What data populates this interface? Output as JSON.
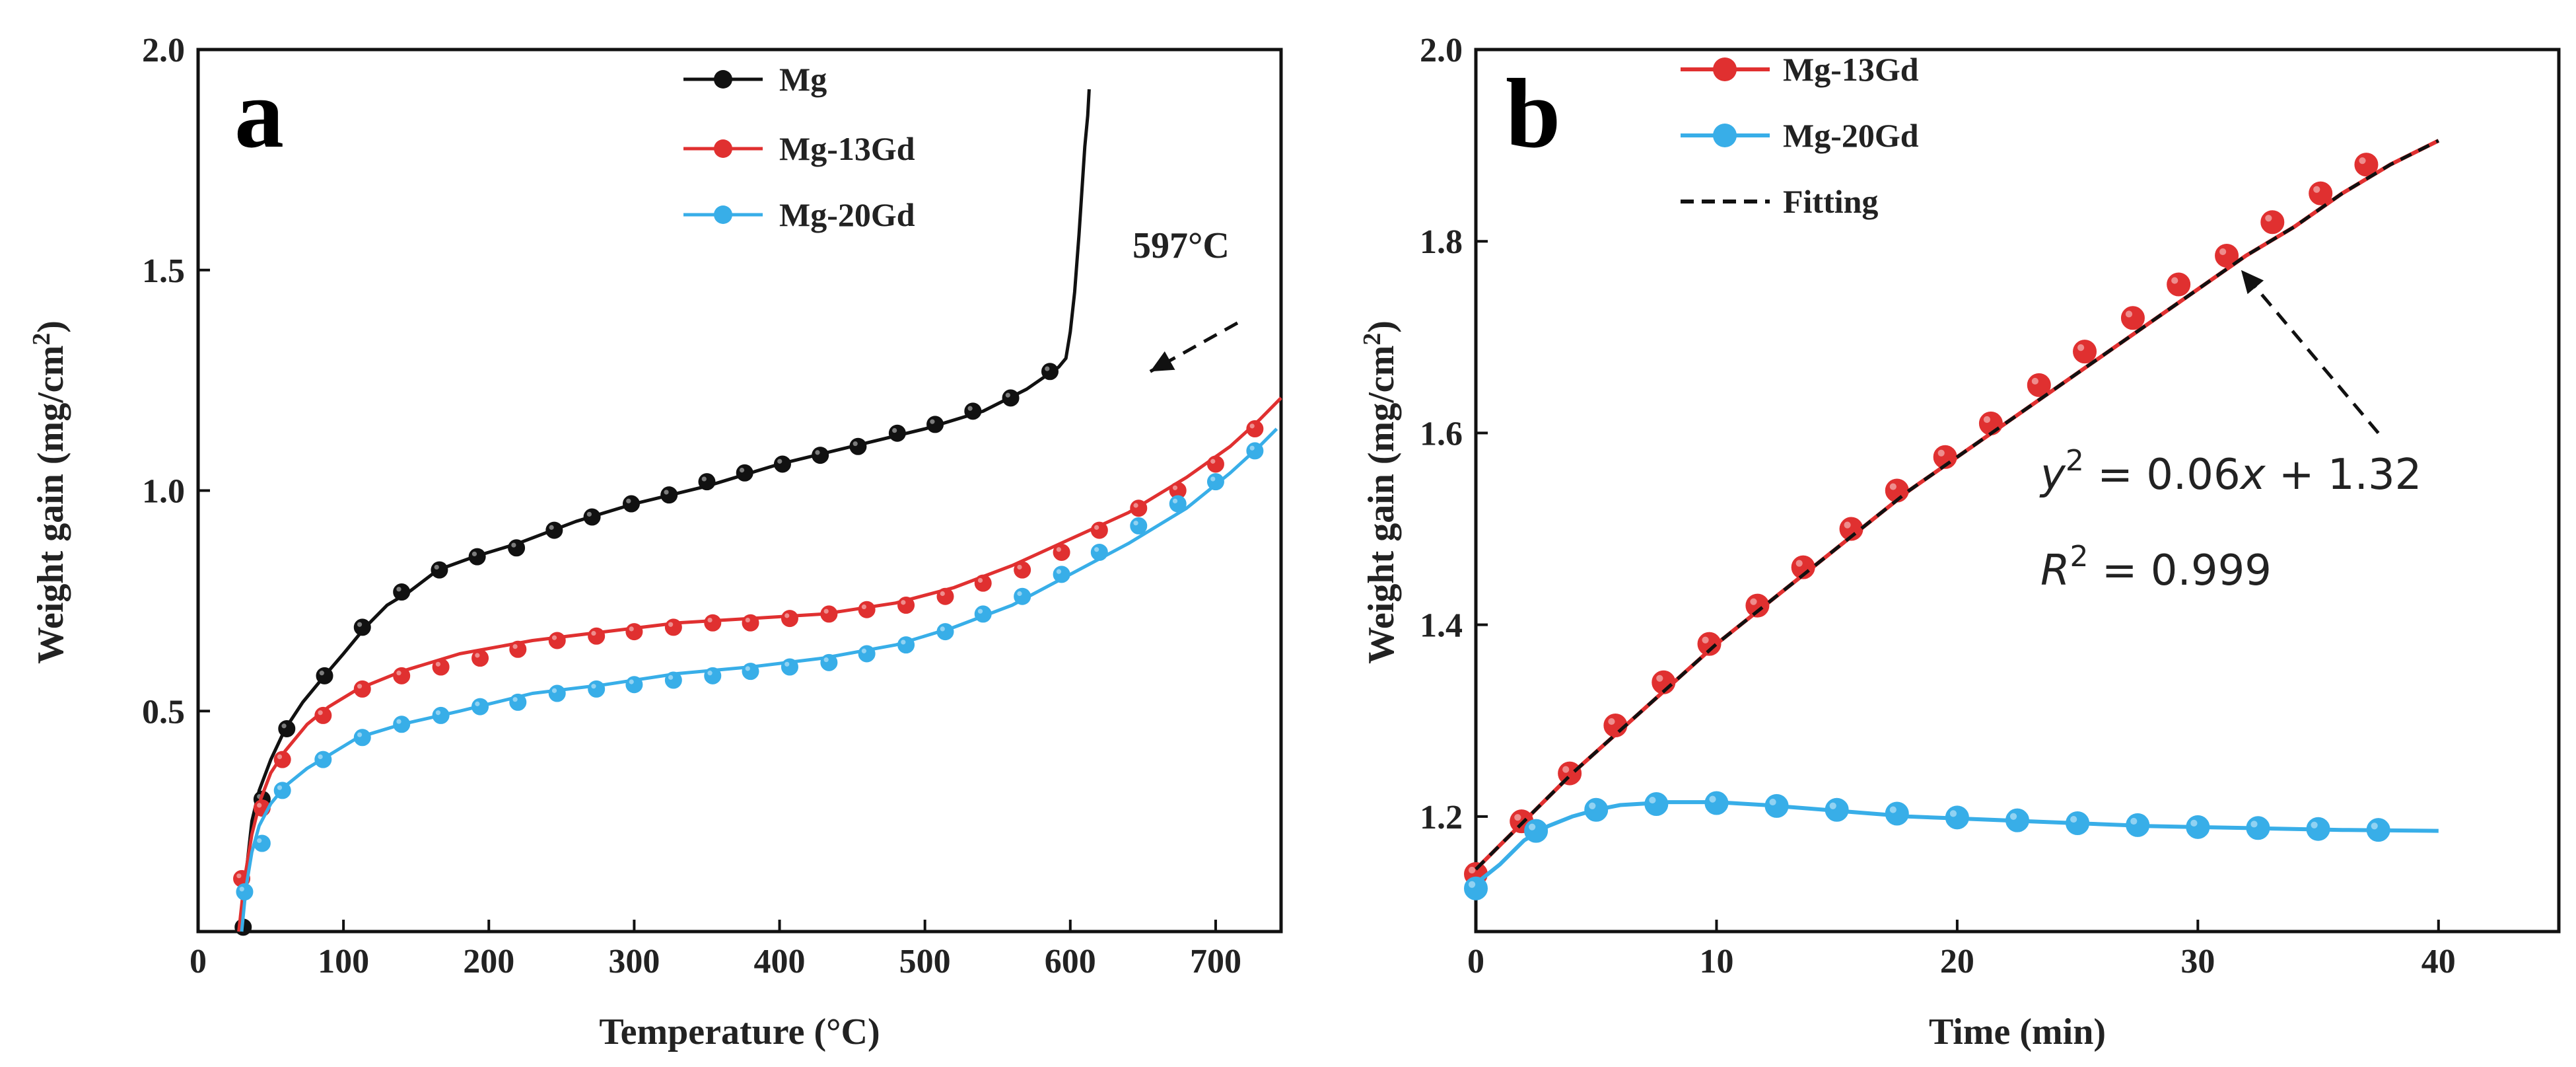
{
  "colors": {
    "mg": "#111111",
    "mg13gd": "#e03030",
    "mg20gd": "#38aee8",
    "fitting": "#111111",
    "axis": "#111111"
  },
  "chart_data": [
    {
      "type": "line",
      "panel_label": "a",
      "title": "",
      "xlabel": "Temperature (°C)",
      "ylabel": "Weight gain (mg/cm2)",
      "ylabel_parts": {
        "main": "Weight gain (mg/cm",
        "sup": "2",
        "close": ")"
      },
      "xlim": [
        0,
        745
      ],
      "ylim": [
        0,
        2.0
      ],
      "xticks": [
        0,
        100,
        200,
        300,
        400,
        500,
        600,
        700
      ],
      "yticks": [
        0.5,
        1.0,
        1.5,
        2.0
      ],
      "xtick_labels": [
        "0",
        "100",
        "200",
        "300",
        "400",
        "500",
        "600",
        "700"
      ],
      "ytick_labels": [
        "0.5",
        "1.0",
        "1.5",
        "2.0"
      ],
      "legend_position": "top-center",
      "series": [
        {
          "name": "Mg",
          "color_key": "mg",
          "x": [
            30,
            33,
            37,
            42,
            50,
            60,
            72,
            87,
            100,
            115,
            130,
            145,
            165,
            190,
            220,
            260,
            300,
            350,
            400,
            450,
            500,
            540,
            570,
            592,
            597,
            600,
            603,
            606,
            608,
            610,
            612,
            613
          ],
          "y": [
            0.0,
            0.13,
            0.25,
            0.32,
            0.39,
            0.46,
            0.52,
            0.58,
            0.63,
            0.69,
            0.74,
            0.77,
            0.82,
            0.85,
            0.88,
            0.93,
            0.97,
            1.01,
            1.06,
            1.1,
            1.14,
            1.18,
            1.23,
            1.28,
            1.3,
            1.36,
            1.45,
            1.58,
            1.68,
            1.78,
            1.85,
            1.91
          ],
          "markers_x": [
            31,
            44,
            61,
            87,
            113,
            140,
            166,
            192,
            219,
            245,
            271,
            298,
            324,
            350,
            376,
            402,
            428,
            454,
            481,
            507,
            533,
            559,
            586
          ],
          "markers_y": [
            0.01,
            0.3,
            0.46,
            0.58,
            0.69,
            0.77,
            0.82,
            0.85,
            0.87,
            0.91,
            0.94,
            0.97,
            0.99,
            1.02,
            1.04,
            1.06,
            1.08,
            1.1,
            1.13,
            1.15,
            1.18,
            1.21,
            1.27
          ]
        },
        {
          "name": "Mg-13Gd",
          "color_key": "mg13gd",
          "x": [
            28,
            32,
            37,
            43,
            50,
            60,
            75,
            90,
            110,
            140,
            180,
            230,
            280,
            330,
            380,
            430,
            480,
            520,
            560,
            600,
            640,
            680,
            710,
            730,
            745
          ],
          "y": [
            0.0,
            0.12,
            0.22,
            0.3,
            0.36,
            0.41,
            0.47,
            0.51,
            0.55,
            0.59,
            0.63,
            0.66,
            0.68,
            0.7,
            0.71,
            0.72,
            0.745,
            0.78,
            0.83,
            0.89,
            0.95,
            1.03,
            1.1,
            1.16,
            1.21
          ],
          "markers_x": [
            30,
            44,
            58,
            86,
            113,
            140,
            167,
            194,
            220,
            247,
            274,
            300,
            327,
            354,
            380,
            407,
            434,
            460,
            487,
            514,
            540,
            567,
            594,
            620,
            647,
            674,
            700,
            727
          ],
          "markers_y": [
            0.12,
            0.28,
            0.39,
            0.49,
            0.55,
            0.58,
            0.6,
            0.62,
            0.64,
            0.66,
            0.67,
            0.68,
            0.69,
            0.7,
            0.7,
            0.71,
            0.72,
            0.73,
            0.74,
            0.76,
            0.79,
            0.82,
            0.86,
            0.91,
            0.96,
            1.0,
            1.06,
            1.14
          ]
        },
        {
          "name": "Mg-20Gd",
          "color_key": "mg20gd",
          "x": [
            30,
            33,
            37,
            42,
            50,
            60,
            75,
            90,
            110,
            140,
            180,
            230,
            280,
            330,
            380,
            430,
            480,
            520,
            560,
            600,
            640,
            680,
            710,
            730,
            742
          ],
          "y": [
            0.0,
            0.1,
            0.18,
            0.24,
            0.29,
            0.33,
            0.37,
            0.4,
            0.44,
            0.47,
            0.5,
            0.54,
            0.56,
            0.585,
            0.6,
            0.62,
            0.65,
            0.69,
            0.74,
            0.81,
            0.88,
            0.96,
            1.04,
            1.1,
            1.14
          ],
          "markers_x": [
            32,
            44,
            58,
            86,
            113,
            140,
            167,
            194,
            220,
            247,
            274,
            300,
            327,
            354,
            380,
            407,
            434,
            460,
            487,
            514,
            540,
            567,
            594,
            620,
            647,
            674,
            700,
            727
          ],
          "markers_y": [
            0.09,
            0.2,
            0.32,
            0.39,
            0.44,
            0.47,
            0.49,
            0.51,
            0.52,
            0.54,
            0.55,
            0.56,
            0.57,
            0.58,
            0.59,
            0.6,
            0.61,
            0.63,
            0.65,
            0.68,
            0.72,
            0.76,
            0.81,
            0.86,
            0.92,
            0.97,
            1.02,
            1.09
          ]
        }
      ],
      "annotations": [
        {
          "text": "597°C",
          "at_x": 605,
          "at_y": 1.28,
          "label_x": 640,
          "label_y": 1.47,
          "arrow_from_x": 715,
          "arrow_from_y": 1.38,
          "arrow_to_x": 655,
          "arrow_to_y": 1.27
        }
      ]
    },
    {
      "type": "line",
      "panel_label": "b",
      "title": "",
      "xlabel": "Time (min)",
      "ylabel": "Weight gain (mg/cm2)",
      "ylabel_parts": {
        "main": "Weight gain (mg/cm",
        "sup": "2",
        "close": ")"
      },
      "xlim": [
        0,
        45
      ],
      "ylim": [
        1.08,
        2.0
      ],
      "xticks": [
        0,
        10,
        20,
        30,
        40
      ],
      "yticks": [
        1.2,
        1.4,
        1.6,
        1.8,
        2.0
      ],
      "xtick_labels": [
        "0",
        "10",
        "20",
        "30",
        "40"
      ],
      "ytick_labels": [
        "1.2",
        "1.4",
        "1.6",
        "1.8",
        "2.0"
      ],
      "legend_position": "top-left",
      "series": [
        {
          "name": "Mg-13Gd",
          "color_key": "mg13gd",
          "x": [
            0,
            1,
            2,
            4,
            6,
            8,
            10,
            12,
            14,
            16,
            18,
            20,
            22,
            24,
            26,
            28,
            30,
            32,
            34,
            36,
            38,
            40
          ],
          "y": [
            1.145,
            1.17,
            1.195,
            1.245,
            1.29,
            1.335,
            1.38,
            1.42,
            1.46,
            1.5,
            1.54,
            1.575,
            1.61,
            1.645,
            1.68,
            1.715,
            1.75,
            1.785,
            1.815,
            1.85,
            1.88,
            1.905
          ],
          "markers_x": [
            0,
            1.9,
            3.9,
            5.8,
            7.8,
            9.7,
            11.7,
            13.6,
            15.6,
            17.5,
            19.5,
            21.4,
            23.4,
            25.3,
            27.3,
            29.2,
            31.2,
            33.1,
            35.1,
            37.0
          ],
          "markers_y": [
            1.14,
            1.195,
            1.245,
            1.295,
            1.34,
            1.38,
            1.42,
            1.46,
            1.5,
            1.54,
            1.575,
            1.61,
            1.65,
            1.685,
            1.72,
            1.755,
            1.785,
            1.82,
            1.85,
            1.88
          ]
        },
        {
          "name": "Mg-20Gd",
          "color_key": "mg20gd",
          "x": [
            0,
            1,
            2,
            3,
            4,
            5,
            6,
            8,
            10,
            12,
            14,
            16,
            18,
            20,
            24,
            28,
            32,
            36,
            40
          ],
          "y": [
            1.13,
            1.15,
            1.175,
            1.19,
            1.2,
            1.207,
            1.212,
            1.215,
            1.215,
            1.212,
            1.208,
            1.204,
            1.2,
            1.198,
            1.194,
            1.19,
            1.188,
            1.186,
            1.185
          ],
          "markers_x": [
            0,
            2.5,
            5,
            7.5,
            10,
            12.5,
            15,
            17.5,
            20,
            22.5,
            25,
            27.5,
            30,
            32.5,
            35,
            37.5
          ],
          "markers_y": [
            1.125,
            1.185,
            1.207,
            1.213,
            1.214,
            1.211,
            1.207,
            1.203,
            1.199,
            1.196,
            1.193,
            1.191,
            1.189,
            1.188,
            1.187,
            1.186
          ]
        },
        {
          "name": "Fitting",
          "color_key": "fitting",
          "dashed": true,
          "x": [
            0,
            1,
            2,
            4,
            6,
            8,
            10,
            12,
            14,
            16,
            18,
            20,
            22,
            24,
            26,
            28,
            30,
            32,
            34,
            36,
            38,
            40
          ],
          "y": [
            1.145,
            1.17,
            1.195,
            1.245,
            1.29,
            1.335,
            1.38,
            1.42,
            1.46,
            1.5,
            1.54,
            1.575,
            1.61,
            1.645,
            1.68,
            1.715,
            1.75,
            1.785,
            1.815,
            1.85,
            1.88,
            1.905
          ]
        }
      ],
      "equation": {
        "line1": {
          "lhs_var": "y",
          "lhs_sup": "2",
          "rhs": " = 0.06",
          "rhs_var": "x",
          "rhs_end": " + 1.32"
        },
        "line2": {
          "lhs_var": "R",
          "lhs_sup": "2",
          "rhs": " = 0.999"
        }
      },
      "annotations": [
        {
          "text": "",
          "arrow_from_x": 37.5,
          "arrow_from_y": 1.6,
          "arrow_to_x": 31.8,
          "arrow_to_y": 1.77
        }
      ]
    }
  ]
}
